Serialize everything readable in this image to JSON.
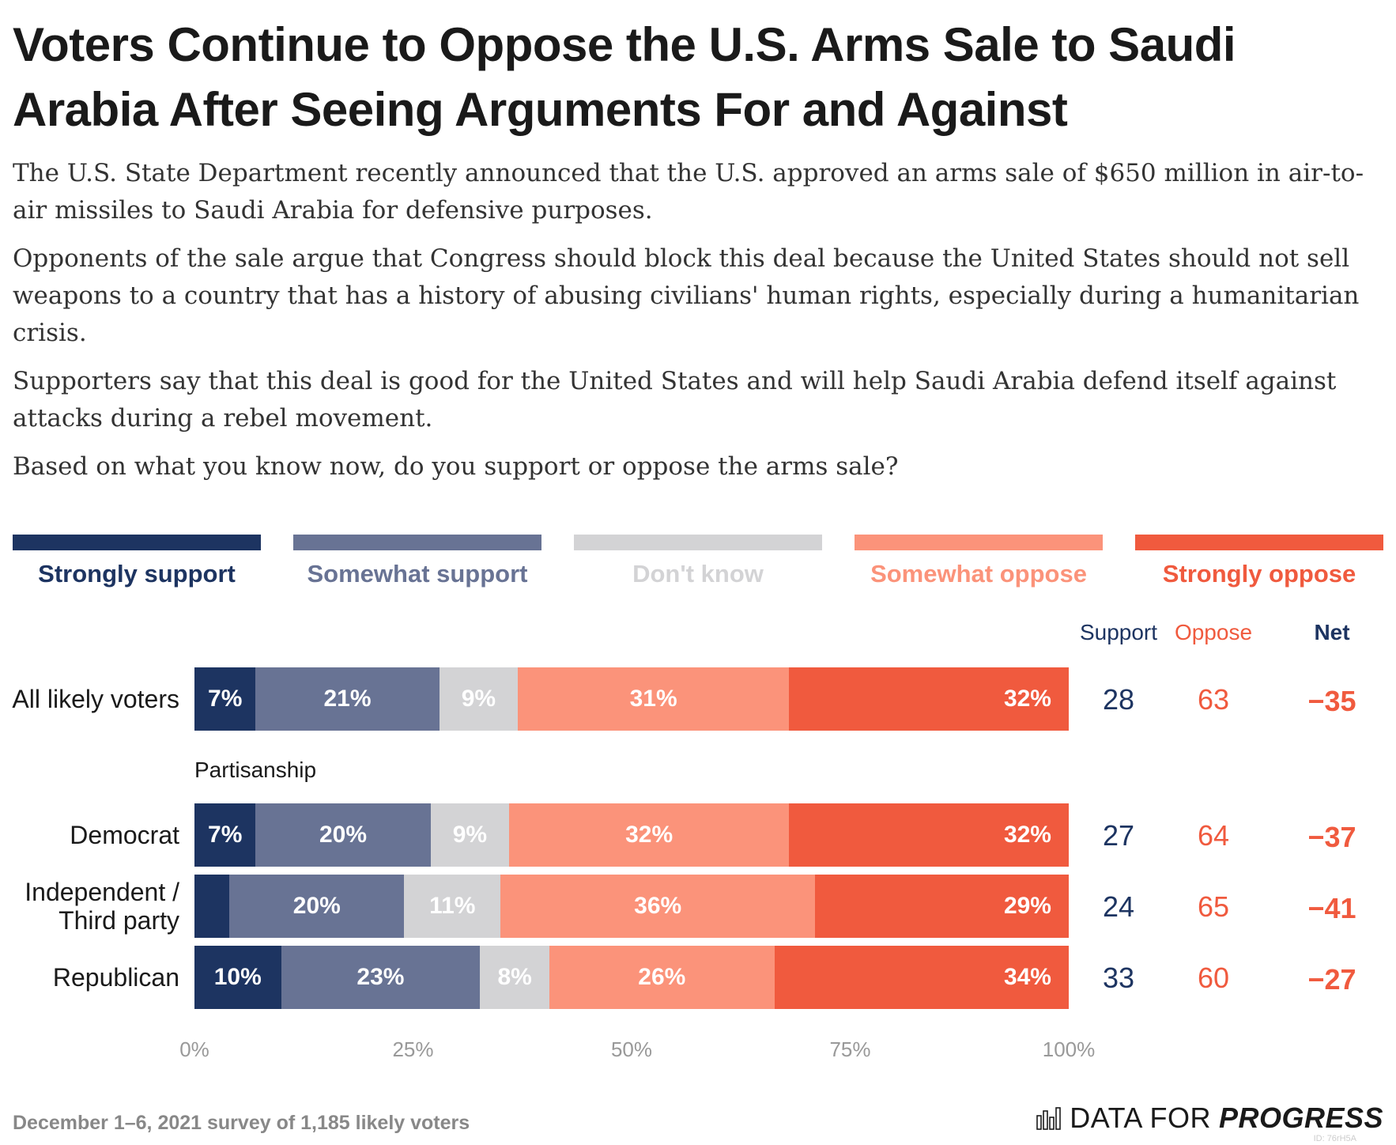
{
  "title": "Voters Continue to Oppose the U.S. Arms Sale to Saudi Arabia After Seeing Arguments For and Against",
  "intro": [
    "The U.S. State Department recently announced that the U.S. approved an arms sale of $650 million in air-to-air missiles to Saudi Arabia for defensive purposes.",
    "Opponents of the sale argue that Congress should block this deal because the United States should not sell weapons to a country that has a history of abusing civilians' human rights, especially during a humanitarian crisis.",
    "Supporters say that this deal is good for the United States and will help Saudi Arabia defend itself against attacks during a rebel movement.",
    "Based on what you know now, do you support or oppose the arms sale?"
  ],
  "colors": {
    "strongly_support": "#1d3461",
    "somewhat_support": "#687394",
    "dont_know": "#d3d3d5",
    "somewhat_oppose": "#fb937a",
    "strongly_oppose": "#f05a3e"
  },
  "column_headers": {
    "support": "Support",
    "oppose": "Oppose",
    "net": "Net"
  },
  "section_label": "Partisanship",
  "footnote": "December 1–6, 2021 survey of 1,185 likely voters",
  "brand": {
    "part1": "DATA FOR",
    "part2": "PROGRESS",
    "logo_icon": "bar-chart-icon"
  },
  "chart_id": "ID: 76rH5A",
  "chart_data": {
    "type": "bar",
    "orientation": "horizontal",
    "stacked": true,
    "xlim": [
      0,
      100
    ],
    "x_ticks": [
      "0%",
      "25%",
      "50%",
      "75%",
      "100%"
    ],
    "legend_position": "top",
    "series": [
      {
        "name": "Strongly support",
        "color": "#1d3461"
      },
      {
        "name": "Somewhat support",
        "color": "#687394"
      },
      {
        "name": "Don't know",
        "color": "#d3d3d5"
      },
      {
        "name": "Somewhat oppose",
        "color": "#fb937a"
      },
      {
        "name": "Strongly oppose",
        "color": "#f05a3e"
      }
    ],
    "rows": [
      {
        "label": "All likely voters",
        "values": [
          7,
          21,
          9,
          31,
          32
        ],
        "labels": [
          "7%",
          "21%",
          "9%",
          "31%",
          "32%"
        ],
        "support": "28",
        "oppose": "63",
        "net": "−35"
      },
      {
        "label": "Democrat",
        "values": [
          7,
          20,
          9,
          32,
          32
        ],
        "labels": [
          "7%",
          "20%",
          "9%",
          "32%",
          "32%"
        ],
        "support": "27",
        "oppose": "64",
        "net": "−37"
      },
      {
        "label": "Independent / Third party",
        "values": [
          4,
          20,
          11,
          36,
          29
        ],
        "labels": [
          "",
          "20%",
          "11%",
          "36%",
          "29%"
        ],
        "support": "24",
        "oppose": "65",
        "net": "−41"
      },
      {
        "label": "Republican",
        "values": [
          10,
          23,
          8,
          26,
          34
        ],
        "labels": [
          "10%",
          "23%",
          "8%",
          "26%",
          "34%"
        ],
        "support": "33",
        "oppose": "60",
        "net": "−27"
      }
    ]
  }
}
